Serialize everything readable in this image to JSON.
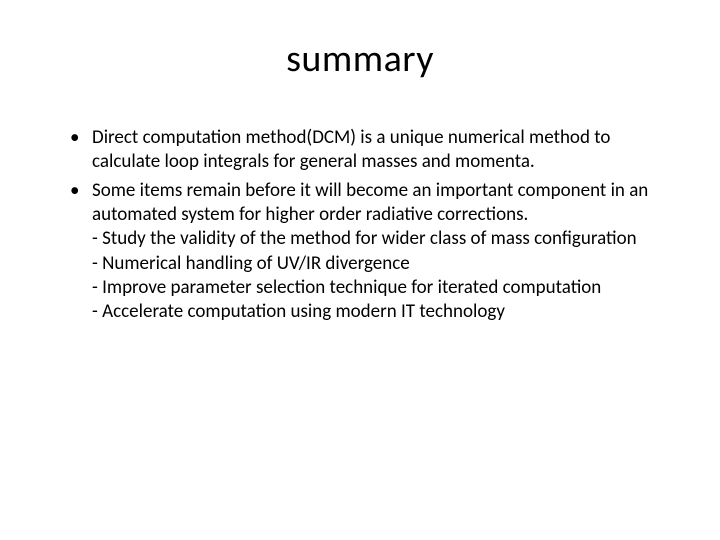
{
  "slide": {
    "title": "summary",
    "title_fontsize": 38,
    "title_fontweight": 400,
    "title_color": "#000000",
    "background_color": "#ffffff",
    "body_fontsize": 19,
    "body_color": "#000000",
    "bullets": [
      {
        "text": "Direct computation method(DCM) is a unique numerical method to calculate loop integrals for general masses and momenta."
      },
      {
        "text": "Some items remain before it will become an important component in an automated system for higher order radiative corrections.",
        "subitems": [
          "- Study the validity of the method for wider class of  mass configuration",
          "- Numerical  handling of  UV/IR divergence",
          "- Improve parameter selection  technique  for  iterated computation",
          "- Accelerate computation using modern IT technology"
        ]
      }
    ]
  }
}
